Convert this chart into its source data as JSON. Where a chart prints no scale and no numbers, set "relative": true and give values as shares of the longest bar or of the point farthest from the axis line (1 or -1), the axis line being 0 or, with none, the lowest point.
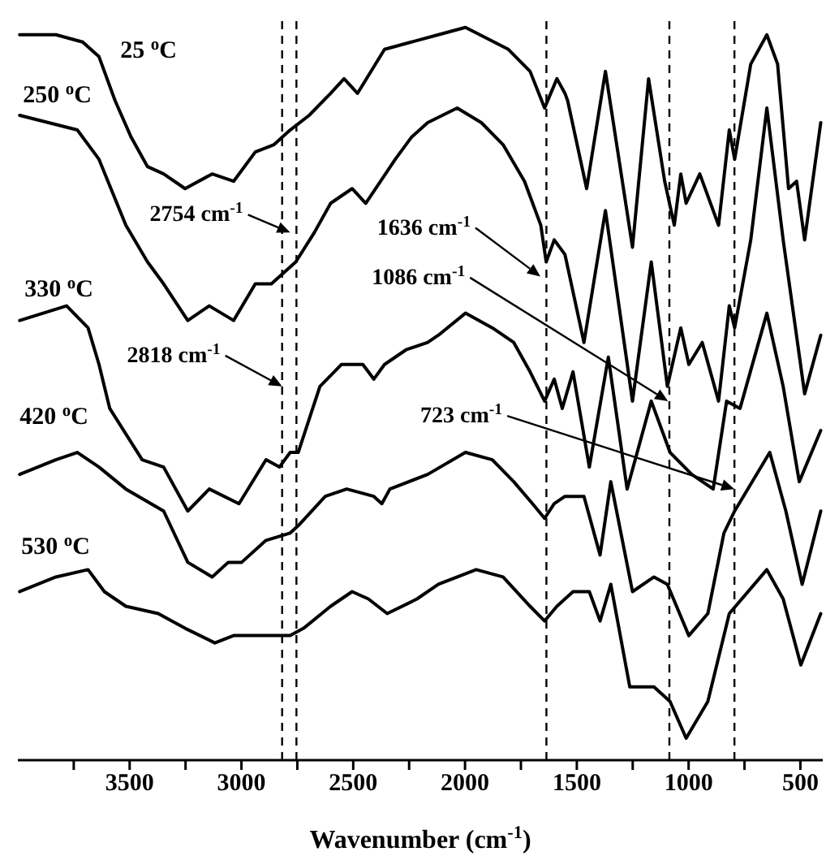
{
  "chart_data": {
    "type": "line",
    "relative": true,
    "xlabel": "Wavenumber (cm$^{-1}$)",
    "xlim": [
      4000,
      400
    ],
    "xticks": [
      {
        "value": 3750,
        "label": null
      },
      3500,
      {
        "value": 3250,
        "label": null
      },
      3000,
      {
        "value": 2750,
        "label": null
      },
      2500,
      {
        "value": 2250,
        "label": null
      },
      2000,
      {
        "value": 1750,
        "label": null
      },
      1500,
      {
        "value": 1250,
        "label": null
      },
      1000,
      {
        "value": 750,
        "label": null
      },
      500
    ],
    "marker": "none",
    "line_style": "solid",
    "ref_lines": [
      {
        "axis": "x",
        "value": 2818,
        "line_style": "dashed",
        "color": "#000000"
      },
      {
        "axis": "x",
        "value": 2754,
        "line_style": "dashed",
        "color": "#000000"
      },
      {
        "axis": "x",
        "value": 1636,
        "line_style": "dashed",
        "color": "#000000"
      },
      {
        "axis": "x",
        "value": 1086,
        "line_style": "dashed",
        "color": "#000000"
      },
      {
        "axis": "x",
        "value": 795,
        "line_style": "dashed",
        "color": "#000000"
      }
    ],
    "annotations": [
      {
        "text": "2754 cm$^{-1}$",
        "x": 2782,
        "y": 0.72
      },
      {
        "text": "2818 cm$^{-1}$",
        "x": 2818,
        "y": 0.51
      },
      {
        "text": "1636 cm$^{-1}$",
        "x": 1663,
        "y": 0.66
      },
      {
        "text": "1086 cm$^{-1}$",
        "x": 1092,
        "y": 0.49
      },
      {
        "text": "723 cm$^{-1}$",
        "x": 795,
        "y": 0.37
      }
    ],
    "series": [
      {
        "name": "25 $^{o}$C",
        "color": "#000000",
        "x": [
          3992,
          3830,
          3710,
          3637,
          3565,
          3493,
          3420,
          3348,
          3252,
          3131,
          3035,
          2938,
          2854,
          2782,
          2697,
          2601,
          2541,
          2481,
          2360,
          2240,
          2119,
          1998,
          1806,
          1709,
          1644,
          1589,
          1553,
          1541,
          1456,
          1372,
          1251,
          1179,
          1107,
          1064,
          1035,
          1011,
          950,
          866,
          818,
          794,
          722,
          650,
          602,
          553,
          517,
          481,
          409
        ],
        "values": [
          0.99,
          0.99,
          0.98,
          0.96,
          0.9,
          0.85,
          0.81,
          0.8,
          0.78,
          0.8,
          0.79,
          0.83,
          0.84,
          0.86,
          0.88,
          0.91,
          0.93,
          0.91,
          0.97,
          0.98,
          0.99,
          1.0,
          0.97,
          0.94,
          0.89,
          0.93,
          0.91,
          0.9,
          0.78,
          0.94,
          0.7,
          0.93,
          0.79,
          0.73,
          0.8,
          0.76,
          0.8,
          0.73,
          0.86,
          0.82,
          0.95,
          0.99,
          0.95,
          0.78,
          0.79,
          0.71,
          0.87
        ]
      },
      {
        "name": "250 $^{o}$C",
        "color": "#000000",
        "x": [
          3992,
          3734,
          3637,
          3517,
          3420,
          3348,
          3240,
          3144,
          3035,
          2938,
          2866,
          2757,
          2674,
          2601,
          2505,
          2444,
          2312,
          2240,
          2167,
          2035,
          1927,
          1830,
          1734,
          1661,
          1637,
          1601,
          1553,
          1468,
          1372,
          1251,
          1167,
          1095,
          1035,
          999,
          939,
          866,
          818,
          794,
          722,
          650,
          577,
          481,
          409
        ],
        "values": [
          0.88,
          0.86,
          0.82,
          0.73,
          0.68,
          0.65,
          0.6,
          0.62,
          0.6,
          0.65,
          0.65,
          0.68,
          0.72,
          0.76,
          0.78,
          0.76,
          0.82,
          0.85,
          0.87,
          0.89,
          0.87,
          0.84,
          0.79,
          0.73,
          0.68,
          0.71,
          0.69,
          0.57,
          0.75,
          0.49,
          0.68,
          0.51,
          0.59,
          0.54,
          0.57,
          0.49,
          0.62,
          0.59,
          0.71,
          0.89,
          0.71,
          0.5,
          0.58
        ]
      },
      {
        "name": "330 $^{o}$C",
        "color": "#000000",
        "x": [
          3992,
          3782,
          3686,
          3637,
          3589,
          3444,
          3348,
          3240,
          3144,
          3011,
          2890,
          2830,
          2782,
          2746,
          2649,
          2553,
          2457,
          2408,
          2360,
          2264,
          2167,
          2119,
          1998,
          1878,
          1782,
          1709,
          1644,
          1601,
          1565,
          1517,
          1444,
          1359,
          1275,
          1167,
          1083,
          986,
          890,
          830,
          770,
          650,
          577,
          505,
          409
        ],
        "values": [
          0.6,
          0.62,
          0.59,
          0.54,
          0.48,
          0.41,
          0.4,
          0.34,
          0.37,
          0.35,
          0.41,
          0.4,
          0.42,
          0.42,
          0.51,
          0.54,
          0.54,
          0.52,
          0.54,
          0.56,
          0.57,
          0.58,
          0.61,
          0.59,
          0.57,
          0.53,
          0.49,
          0.52,
          0.48,
          0.53,
          0.4,
          0.55,
          0.37,
          0.49,
          0.42,
          0.39,
          0.37,
          0.49,
          0.48,
          0.61,
          0.51,
          0.38,
          0.45
        ]
      },
      {
        "name": "420 $^{o}$C",
        "color": "#000000",
        "x": [
          3992,
          3830,
          3734,
          3637,
          3517,
          3348,
          3240,
          3131,
          3059,
          2999,
          2890,
          2782,
          2746,
          2625,
          2529,
          2408,
          2372,
          2336,
          2167,
          1998,
          1878,
          1782,
          1698,
          1644,
          1601,
          1553,
          1468,
          1396,
          1348,
          1251,
          1155,
          1095,
          999,
          914,
          842,
          794,
          637,
          565,
          492,
          409
        ],
        "values": [
          0.39,
          0.41,
          0.42,
          0.4,
          0.37,
          0.34,
          0.27,
          0.25,
          0.27,
          0.27,
          0.3,
          0.31,
          0.32,
          0.36,
          0.37,
          0.36,
          0.35,
          0.37,
          0.39,
          0.42,
          0.41,
          0.38,
          0.35,
          0.33,
          0.35,
          0.36,
          0.36,
          0.28,
          0.38,
          0.23,
          0.25,
          0.24,
          0.17,
          0.2,
          0.31,
          0.34,
          0.42,
          0.34,
          0.24,
          0.34
        ]
      },
      {
        "name": "530 $^{o}$C",
        "color": "#000000",
        "x": [
          3992,
          3830,
          3686,
          3613,
          3517,
          3372,
          3252,
          3119,
          3035,
          2938,
          2782,
          2722,
          2601,
          2505,
          2432,
          2348,
          2215,
          2119,
          1950,
          1830,
          1709,
          1644,
          1589,
          1553,
          1517,
          1444,
          1396,
          1348,
          1263,
          1155,
          1083,
          1011,
          914,
          818,
          650,
          577,
          498,
          409
        ],
        "values": [
          0.23,
          0.25,
          0.26,
          0.23,
          0.21,
          0.2,
          0.18,
          0.16,
          0.17,
          0.17,
          0.17,
          0.18,
          0.21,
          0.23,
          0.22,
          0.2,
          0.22,
          0.24,
          0.26,
          0.25,
          0.21,
          0.19,
          0.21,
          0.22,
          0.23,
          0.23,
          0.19,
          0.24,
          0.1,
          0.1,
          0.08,
          0.03,
          0.08,
          0.2,
          0.26,
          0.22,
          0.13,
          0.2
        ]
      }
    ]
  }
}
